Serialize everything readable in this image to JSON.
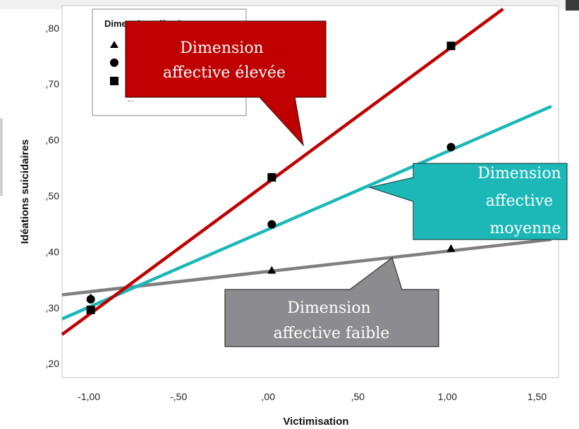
{
  "chart_data": {
    "type": "scatter",
    "xlabel": "Victimisation",
    "ylabel": "Idéations suicidaires",
    "xlim": [
      -1.15,
      1.62
    ],
    "ylim": [
      0.175,
      0.84
    ],
    "x_ticks": [
      "-1,00",
      "-,50",
      ",00",
      ",50",
      "1,00",
      "1,50"
    ],
    "x_tick_values": [
      -1.0,
      -0.5,
      0.0,
      0.5,
      1.0,
      1.5
    ],
    "y_ticks": [
      ",20",
      ",30",
      ",40",
      ",50",
      ",60",
      ",70",
      ",80"
    ],
    "y_tick_values": [
      0.2,
      0.3,
      0.4,
      0.5,
      0.6,
      0.7,
      0.8
    ],
    "legend": {
      "title": "Dimension affective",
      "placement": "top-left",
      "entries": [
        {
          "marker": "triangle"
        },
        {
          "marker": "circle"
        },
        {
          "marker": "square"
        }
      ],
      "ellipsis": "..."
    },
    "series": [
      {
        "marker": "triangle",
        "color": "#7f7f81",
        "points": [
          {
            "x": -0.99,
            "y": 0.318
          },
          {
            "x": 0.02,
            "y": 0.367
          },
          {
            "x": 1.02,
            "y": 0.406
          }
        ],
        "fit": {
          "x": [
            -1.15,
            1.58
          ],
          "y": [
            0.323,
            0.422
          ]
        }
      },
      {
        "marker": "circle",
        "color": "#1cb8b8",
        "points": [
          {
            "x": -0.99,
            "y": 0.315
          },
          {
            "x": 0.02,
            "y": 0.449
          },
          {
            "x": 1.02,
            "y": 0.587
          }
        ],
        "fit": {
          "x": [
            -1.15,
            1.58
          ],
          "y": [
            0.28,
            0.66
          ]
        }
      },
      {
        "marker": "square",
        "color": "#c00000",
        "points": [
          {
            "x": -0.99,
            "y": 0.296
          },
          {
            "x": 0.02,
            "y": 0.533
          },
          {
            "x": 1.02,
            "y": 0.768
          }
        ],
        "fit": {
          "x": [
            -1.15,
            1.31
          ],
          "y": [
            0.252,
            0.834
          ]
        }
      }
    ],
    "annotations": [
      {
        "text": [
          "Dimension",
          "affective élevée"
        ],
        "fill": "#c00000",
        "text_color": "#ffffff",
        "pointer_to": {
          "x": 0.2,
          "y": 0.59
        }
      },
      {
        "text": [
          "Dimension",
          "affective",
          "moyenne"
        ],
        "fill": "#1cb8b8",
        "text_color": "#ffffff",
        "pointer_to": {
          "x": 0.52,
          "y": 0.513
        }
      },
      {
        "text": [
          "Dimension",
          "affective faible"
        ],
        "fill": "#8c8c90",
        "text_color": "#ffffff",
        "pointer_to": {
          "x": 0.73,
          "y": 0.393
        }
      }
    ]
  }
}
